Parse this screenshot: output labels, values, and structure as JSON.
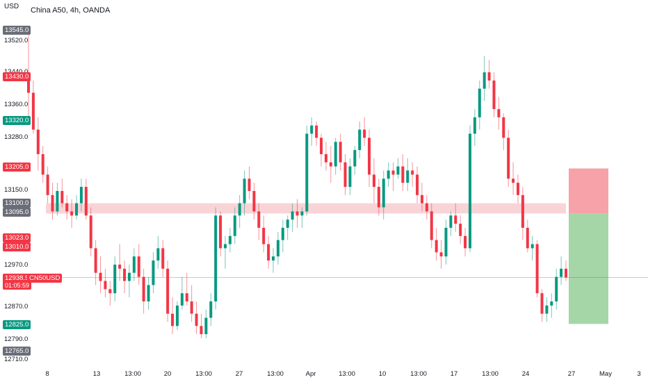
{
  "header": {
    "unit": "USD",
    "title": "China A50, 4h, OANDA"
  },
  "price_axis": {
    "ticks": [
      "13520.0",
      "13440.0",
      "13360.0",
      "13280.0",
      "13150.0",
      "12970.0",
      "12870.0",
      "12790.0",
      "12710.0"
    ],
    "tags": [
      {
        "text": "13545.0",
        "style": "gray"
      },
      {
        "text": "13430.0",
        "style": "red"
      },
      {
        "text": "13320.0",
        "style": "green"
      },
      {
        "text": "13205.0",
        "style": "red"
      },
      {
        "text": "13100.0",
        "style": "gray"
      },
      {
        "text": "13095.0",
        "style": "gray"
      },
      {
        "text": "13023.0",
        "style": "red"
      },
      {
        "text": "13010.0",
        "style": "red"
      },
      {
        "text": "12938.5",
        "style": "red"
      },
      {
        "text": "12825.0",
        "style": "green"
      },
      {
        "text": "12765.0",
        "style": "gray"
      }
    ],
    "current_price": "12938.5",
    "countdown": "01:05:59",
    "symbol": "CN50USD"
  },
  "time_axis": {
    "labels": [
      "8",
      "13",
      "13:00",
      "20",
      "13:00",
      "27",
      "13:00",
      "Apr",
      "13:00",
      "10",
      "13:00",
      "17",
      "13:00",
      "24",
      "27",
      "May",
      "3"
    ]
  },
  "colors": {
    "up": "#089981",
    "down": "#f23645",
    "zone": "#f7c5c9",
    "stop": "#f7a1a8",
    "target": "#a5d6a7",
    "price_line": "#f23645"
  },
  "chart_data": {
    "type": "candlestick",
    "title": "China A50, 4h, OANDA",
    "ylabel": "USD",
    "ylim": [
      12700,
      13570
    ],
    "x": [],
    "values": [],
    "series": [
      {
        "ohlc": [
          [
            13430,
            13550,
            13330,
            13390
          ],
          [
            13390,
            13420,
            13290,
            13300
          ],
          [
            13300,
            13330,
            13200,
            13240
          ],
          [
            13240,
            13260,
            13170,
            13190
          ],
          [
            13190,
            13210,
            13120,
            13140
          ],
          [
            13140,
            13170,
            13080,
            13100
          ],
          [
            13100,
            13170,
            13090,
            13150
          ],
          [
            13150,
            13180,
            13110,
            13120
          ],
          [
            13120,
            13140,
            13080,
            13100
          ],
          [
            13100,
            13130,
            13060,
            13090
          ],
          [
            13090,
            13140,
            13080,
            13120
          ],
          [
            13120,
            13180,
            13100,
            13160
          ],
          [
            13160,
            13180,
            13080,
            13090
          ],
          [
            13090,
            13110,
            12990,
            13010
          ],
          [
            13010,
            13030,
            12920,
            12950
          ],
          [
            12950,
            12990,
            12900,
            12930
          ],
          [
            12930,
            12960,
            12890,
            12910
          ],
          [
            12910,
            12930,
            12870,
            12900
          ],
          [
            12900,
            12990,
            12880,
            12970
          ],
          [
            12970,
            13020,
            12930,
            12960
          ],
          [
            12960,
            12980,
            12900,
            12930
          ],
          [
            12930,
            12970,
            12890,
            12950
          ],
          [
            12950,
            13010,
            12930,
            12990
          ],
          [
            12990,
            13020,
            12920,
            12940
          ],
          [
            12940,
            12960,
            12850,
            12880
          ],
          [
            12880,
            12940,
            12860,
            12920
          ],
          [
            12920,
            13000,
            12900,
            12980
          ],
          [
            12980,
            13040,
            12960,
            13010
          ],
          [
            13010,
            13030,
            12940,
            12960
          ],
          [
            12960,
            12980,
            12830,
            12850
          ],
          [
            12850,
            12890,
            12800,
            12820
          ],
          [
            12820,
            12880,
            12810,
            12870
          ],
          [
            12870,
            12940,
            12860,
            12900
          ],
          [
            12900,
            12950,
            12870,
            12880
          ],
          [
            12880,
            12920,
            12830,
            12850
          ],
          [
            12850,
            12880,
            12800,
            12820
          ],
          [
            12820,
            12850,
            12790,
            12800
          ],
          [
            12800,
            12860,
            12790,
            12840
          ],
          [
            12840,
            12900,
            12820,
            12880
          ],
          [
            12880,
            13110,
            12860,
            13090
          ],
          [
            13090,
            13100,
            12990,
            13010
          ],
          [
            13010,
            13040,
            12960,
            13020
          ],
          [
            13020,
            13060,
            13000,
            13040
          ],
          [
            13040,
            13110,
            13020,
            13090
          ],
          [
            13090,
            13140,
            13060,
            13120
          ],
          [
            13120,
            13200,
            13090,
            13180
          ],
          [
            13180,
            13210,
            13130,
            13150
          ],
          [
            13150,
            13170,
            13080,
            13100
          ],
          [
            13100,
            13120,
            13030,
            13060
          ],
          [
            13060,
            13090,
            13000,
            13020
          ],
          [
            13020,
            13040,
            12960,
            12980
          ],
          [
            12980,
            13010,
            12950,
            12990
          ],
          [
            12990,
            13050,
            12970,
            13030
          ],
          [
            13030,
            13080,
            13000,
            13060
          ],
          [
            13060,
            13090,
            13030,
            13080
          ],
          [
            13080,
            13120,
            13050,
            13100
          ],
          [
            13100,
            13130,
            13060,
            13090
          ],
          [
            13090,
            13110,
            13060,
            13100
          ],
          [
            13100,
            13310,
            13090,
            13290
          ],
          [
            13290,
            13330,
            13260,
            13310
          ],
          [
            13310,
            13320,
            13260,
            13280
          ],
          [
            13280,
            13290,
            13210,
            13240
          ],
          [
            13240,
            13270,
            13200,
            13220
          ],
          [
            13220,
            13260,
            13170,
            13210
          ],
          [
            13210,
            13280,
            13190,
            13270
          ],
          [
            13270,
            13290,
            13200,
            13220
          ],
          [
            13220,
            13240,
            13140,
            13160
          ],
          [
            13160,
            13230,
            13140,
            13210
          ],
          [
            13210,
            13260,
            13190,
            13250
          ],
          [
            13250,
            13320,
            13230,
            13300
          ],
          [
            13300,
            13330,
            13260,
            13280
          ],
          [
            13280,
            13300,
            13160,
            13190
          ],
          [
            13190,
            13230,
            13120,
            13160
          ],
          [
            13160,
            13180,
            13090,
            13110
          ],
          [
            13110,
            13200,
            13080,
            13180
          ],
          [
            13180,
            13220,
            13160,
            13200
          ],
          [
            13200,
            13220,
            13150,
            13190
          ],
          [
            13190,
            13230,
            13180,
            13210
          ],
          [
            13210,
            13240,
            13150,
            13170
          ],
          [
            13170,
            13230,
            13150,
            13200
          ],
          [
            13200,
            13220,
            13160,
            13190
          ],
          [
            13190,
            13210,
            13120,
            13140
          ],
          [
            13140,
            13170,
            13100,
            13120
          ],
          [
            13120,
            13140,
            13080,
            13100
          ],
          [
            13100,
            13120,
            13010,
            13030
          ],
          [
            13030,
            13060,
            12980,
            13000
          ],
          [
            13000,
            13030,
            12960,
            12990
          ],
          [
            12990,
            13080,
            12970,
            13060
          ],
          [
            13060,
            13100,
            13040,
            13090
          ],
          [
            13090,
            13120,
            13050,
            13070
          ],
          [
            13070,
            13090,
            13020,
            13040
          ],
          [
            13040,
            13060,
            12990,
            13010
          ],
          [
            13010,
            13310,
            13000,
            13290
          ],
          [
            13290,
            13350,
            13260,
            13330
          ],
          [
            13330,
            13420,
            13300,
            13400
          ],
          [
            13400,
            13480,
            13370,
            13440
          ],
          [
            13440,
            13470,
            13400,
            13420
          ],
          [
            13420,
            13440,
            13330,
            13350
          ],
          [
            13350,
            13380,
            13300,
            13330
          ],
          [
            13330,
            13340,
            13250,
            13280
          ],
          [
            13280,
            13300,
            13160,
            13180
          ],
          [
            13180,
            13220,
            13140,
            13170
          ],
          [
            13170,
            13190,
            13120,
            13140
          ],
          [
            13140,
            13160,
            13030,
            13060
          ],
          [
            13060,
            13080,
            13000,
            13010
          ],
          [
            13010,
            13040,
            12980,
            13020
          ],
          [
            13020,
            13030,
            12890,
            12900
          ],
          [
            12900,
            12910,
            12830,
            12850
          ],
          [
            12850,
            12890,
            12830,
            12870
          ],
          [
            12870,
            12900,
            12840,
            12880
          ],
          [
            12880,
            12960,
            12860,
            12940
          ],
          [
            12940,
            12990,
            12920,
            12960
          ],
          [
            12960,
            12980,
            12930,
            12938.5
          ]
        ]
      }
    ],
    "annotations": {
      "zone": [
        13095,
        13120
      ],
      "current_line": 12938.5,
      "long_position": {
        "stop": 13205,
        "entry": 13095,
        "target": 12825
      }
    }
  }
}
